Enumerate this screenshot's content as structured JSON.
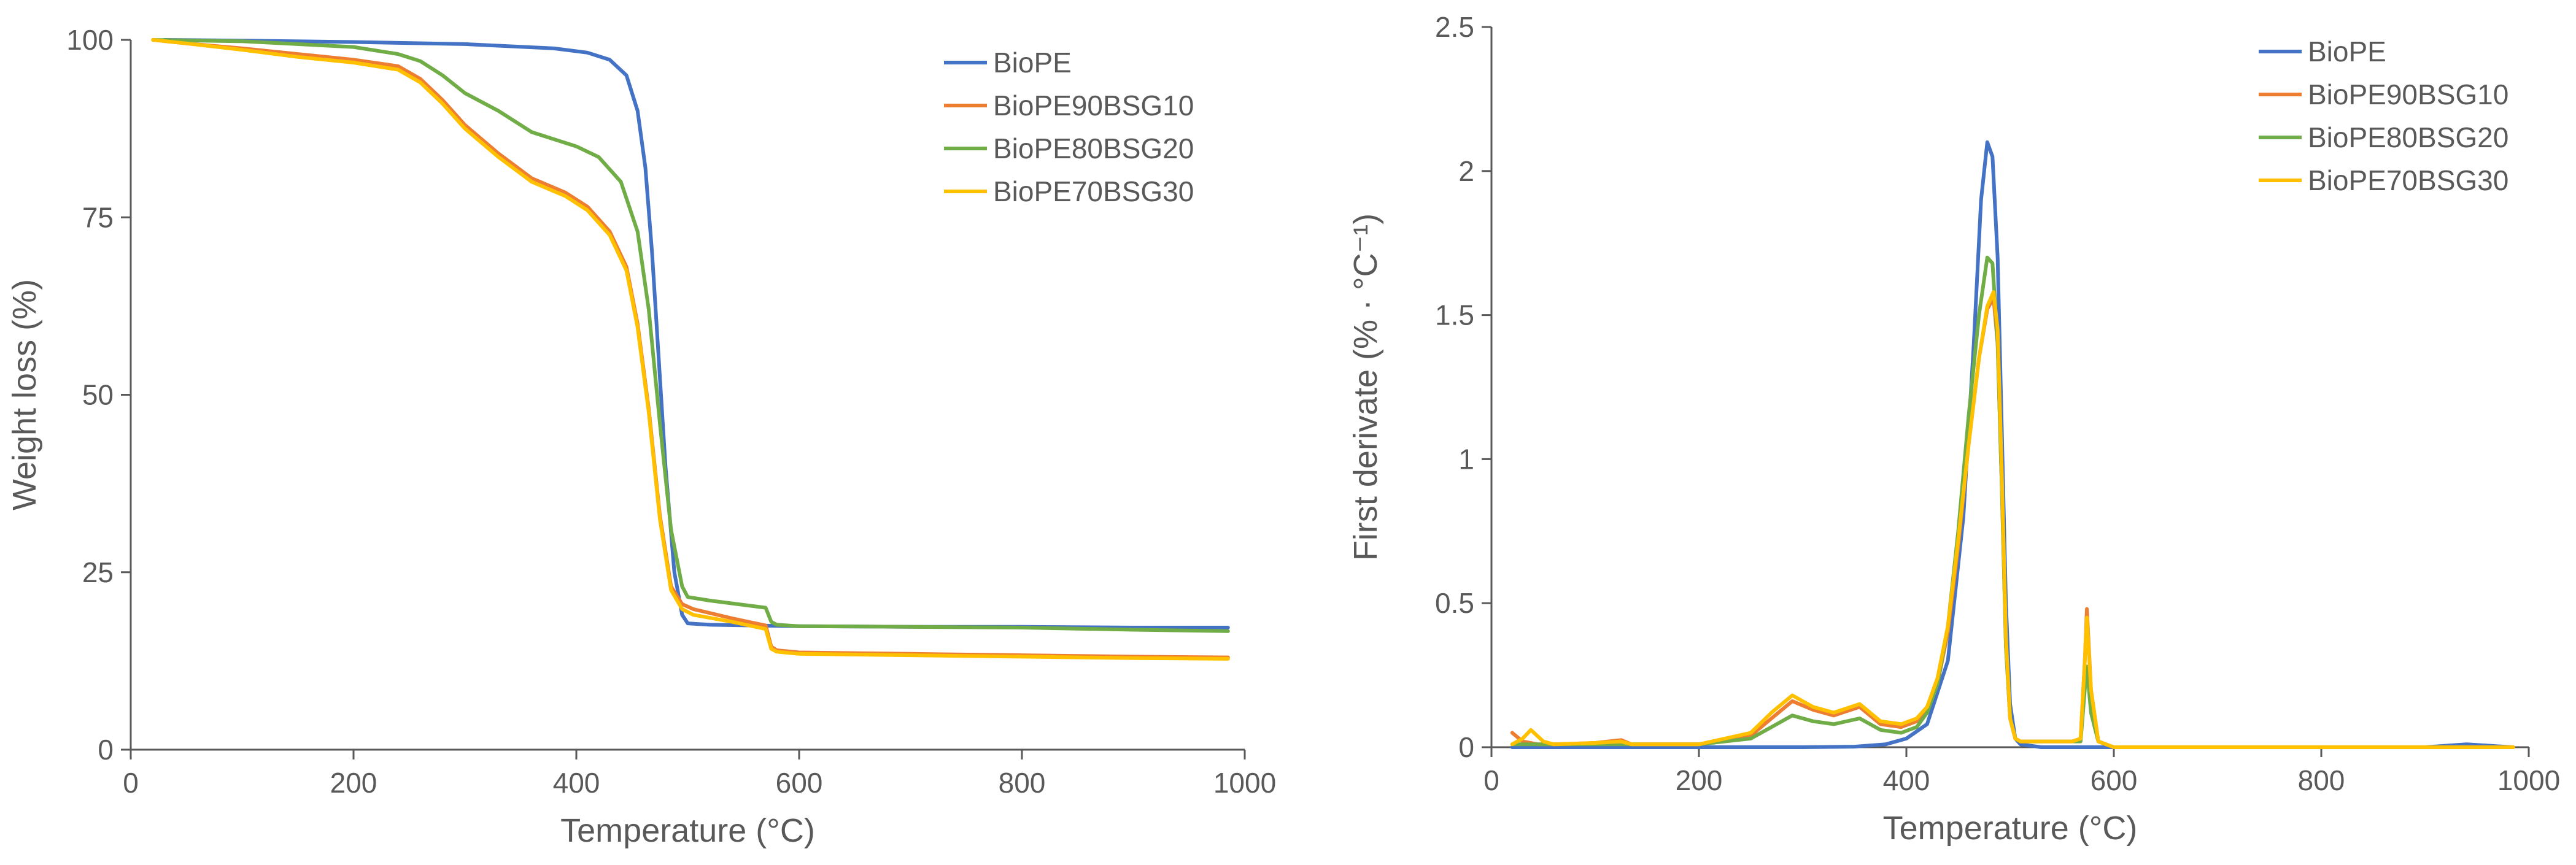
{
  "chart_data": [
    {
      "type": "line",
      "title": "",
      "xlabel": "Temperature (°C)",
      "ylabel": "Weight loss (%)",
      "xlim": [
        0,
        1000
      ],
      "ylim": [
        0,
        100
      ],
      "xticks": [
        0,
        200,
        400,
        600,
        800,
        1000
      ],
      "yticks": [
        0,
        25,
        50,
        75,
        100
      ],
      "grid": false,
      "legend_position": "top-right",
      "series": [
        {
          "name": "BioPE",
          "color": "#4472C4",
          "x": [
            30,
            100,
            200,
            300,
            380,
            410,
            430,
            445,
            455,
            462,
            468,
            474,
            480,
            488,
            495,
            500,
            520,
            600,
            700,
            800,
            900,
            985
          ],
          "y": [
            100,
            99.9,
            99.7,
            99.4,
            98.8,
            98.2,
            97.2,
            95.0,
            90.0,
            82.0,
            70.0,
            55.0,
            40.0,
            25.0,
            19.0,
            17.8,
            17.6,
            17.4,
            17.3,
            17.3,
            17.2,
            17.2
          ]
        },
        {
          "name": "BioPE90BSG10",
          "color": "#ED7D31",
          "x": [
            20,
            50,
            100,
            150,
            200,
            240,
            260,
            280,
            300,
            330,
            360,
            390,
            410,
            430,
            445,
            455,
            465,
            475,
            485,
            495,
            505,
            540,
            570,
            575,
            580,
            600,
            700,
            800,
            900,
            985
          ],
          "y": [
            100,
            99.5,
            98.8,
            98.0,
            97.2,
            96.3,
            94.5,
            91.5,
            88.0,
            84.0,
            80.5,
            78.5,
            76.5,
            73.0,
            68.0,
            60.0,
            48.0,
            33.0,
            23.0,
            20.5,
            19.8,
            18.5,
            17.5,
            14.5,
            14.0,
            13.7,
            13.5,
            13.3,
            13.1,
            13.0
          ]
        },
        {
          "name": "BioPE80BSG20",
          "color": "#70AD47",
          "x": [
            20,
            100,
            200,
            240,
            260,
            280,
            300,
            330,
            360,
            400,
            420,
            440,
            455,
            465,
            475,
            485,
            495,
            500,
            520,
            570,
            575,
            580,
            600,
            700,
            800,
            900,
            985
          ],
          "y": [
            100,
            99.8,
            99.0,
            98.0,
            97.0,
            95.0,
            92.5,
            90.0,
            87.0,
            85.0,
            83.5,
            80.0,
            73.0,
            62.0,
            46.0,
            31.0,
            23.0,
            21.5,
            21.0,
            20.0,
            18.0,
            17.6,
            17.4,
            17.3,
            17.2,
            16.9,
            16.7
          ]
        },
        {
          "name": "BioPE70BSG30",
          "color": "#FFC000",
          "x": [
            20,
            50,
            100,
            150,
            200,
            240,
            260,
            280,
            300,
            330,
            360,
            390,
            410,
            430,
            445,
            455,
            465,
            475,
            485,
            495,
            505,
            540,
            570,
            575,
            580,
            600,
            700,
            800,
            900,
            985
          ],
          "y": [
            100,
            99.5,
            98.6,
            97.6,
            96.8,
            95.8,
            94.0,
            91.0,
            87.5,
            83.5,
            80.0,
            78.0,
            76.0,
            72.5,
            67.5,
            59.5,
            47.5,
            32.5,
            22.5,
            19.8,
            19.0,
            18.0,
            17.0,
            14.2,
            13.8,
            13.5,
            13.3,
            13.1,
            12.9,
            12.8
          ]
        }
      ]
    },
    {
      "type": "line",
      "title": "",
      "xlabel": "Temperature (°C)",
      "ylabel": "First derivate  (% · °C⁻¹)",
      "xlim": [
        0,
        1000
      ],
      "ylim": [
        0,
        2.5
      ],
      "xticks": [
        0,
        200,
        400,
        600,
        800,
        1000
      ],
      "yticks": [
        0,
        0.5,
        1,
        1.5,
        2,
        2.5
      ],
      "ytick_labels": [
        "0",
        "0.5",
        "1",
        "1.5",
        "2",
        "2.5"
      ],
      "grid": false,
      "legend_position": "top-right",
      "series": [
        {
          "name": "BioPE",
          "color": "#4472C4",
          "x": [
            20,
            100,
            200,
            300,
            350,
            380,
            400,
            420,
            440,
            455,
            465,
            472,
            478,
            483,
            488,
            492,
            496,
            500,
            505,
            510,
            530,
            570,
            600,
            700,
            800,
            900,
            940,
            985
          ],
          "y": [
            0,
            0,
            0,
            0,
            0.002,
            0.01,
            0.03,
            0.08,
            0.3,
            0.8,
            1.4,
            1.9,
            2.1,
            2.05,
            1.7,
            1.1,
            0.5,
            0.15,
            0.03,
            0.01,
            0,
            0,
            0,
            0,
            0,
            0,
            0.01,
            0
          ]
        },
        {
          "name": "BioPE90BSG10",
          "color": "#ED7D31",
          "x": [
            20,
            30,
            45,
            60,
            100,
            125,
            135,
            200,
            250,
            270,
            290,
            310,
            330,
            355,
            375,
            395,
            410,
            420,
            430,
            440,
            450,
            460,
            470,
            478,
            484,
            488,
            492,
            496,
            500,
            505,
            510,
            520,
            540,
            560,
            568,
            572,
            574,
            578,
            585,
            600,
            700,
            800,
            900,
            985
          ],
          "y": [
            0.05,
            0.02,
            0.01,
            0.01,
            0.015,
            0.025,
            0.01,
            0.01,
            0.04,
            0.1,
            0.16,
            0.13,
            0.11,
            0.14,
            0.08,
            0.07,
            0.09,
            0.13,
            0.22,
            0.4,
            0.7,
            1.05,
            1.35,
            1.52,
            1.56,
            1.4,
            0.9,
            0.35,
            0.1,
            0.03,
            0.02,
            0.02,
            0.02,
            0.02,
            0.03,
            0.3,
            0.48,
            0.2,
            0.02,
            0,
            0,
            0,
            0,
            0
          ]
        },
        {
          "name": "BioPE80BSG20",
          "color": "#70AD47",
          "x": [
            20,
            60,
            100,
            200,
            250,
            270,
            290,
            310,
            330,
            355,
            375,
            395,
            410,
            420,
            430,
            440,
            450,
            460,
            470,
            478,
            483,
            488,
            492,
            496,
            500,
            505,
            510,
            520,
            540,
            560,
            568,
            572,
            574,
            578,
            585,
            600,
            700,
            800,
            900,
            985
          ],
          "y": [
            0.01,
            0.01,
            0.01,
            0.01,
            0.03,
            0.07,
            0.11,
            0.09,
            0.08,
            0.1,
            0.06,
            0.05,
            0.07,
            0.12,
            0.22,
            0.42,
            0.75,
            1.15,
            1.5,
            1.7,
            1.68,
            1.4,
            0.9,
            0.35,
            0.1,
            0.03,
            0.02,
            0.02,
            0.02,
            0.02,
            0.02,
            0.2,
            0.28,
            0.12,
            0.02,
            0,
            0,
            0,
            0,
            0
          ]
        },
        {
          "name": "BioPE70BSG30",
          "color": "#FFC000",
          "x": [
            20,
            30,
            38,
            50,
            60,
            100,
            125,
            135,
            200,
            250,
            270,
            290,
            310,
            330,
            355,
            375,
            395,
            410,
            420,
            430,
            440,
            450,
            460,
            470,
            478,
            484,
            488,
            492,
            496,
            500,
            505,
            510,
            520,
            540,
            560,
            568,
            572,
            574,
            578,
            585,
            600,
            700,
            800,
            900,
            985
          ],
          "y": [
            0.01,
            0.03,
            0.06,
            0.02,
            0.01,
            0.015,
            0.02,
            0.01,
            0.01,
            0.05,
            0.12,
            0.18,
            0.14,
            0.12,
            0.15,
            0.09,
            0.08,
            0.1,
            0.14,
            0.24,
            0.42,
            0.72,
            1.05,
            1.35,
            1.53,
            1.58,
            1.45,
            0.95,
            0.38,
            0.1,
            0.03,
            0.02,
            0.02,
            0.02,
            0.02,
            0.03,
            0.3,
            0.45,
            0.2,
            0.02,
            0,
            0,
            0,
            0,
            0
          ]
        }
      ]
    }
  ]
}
